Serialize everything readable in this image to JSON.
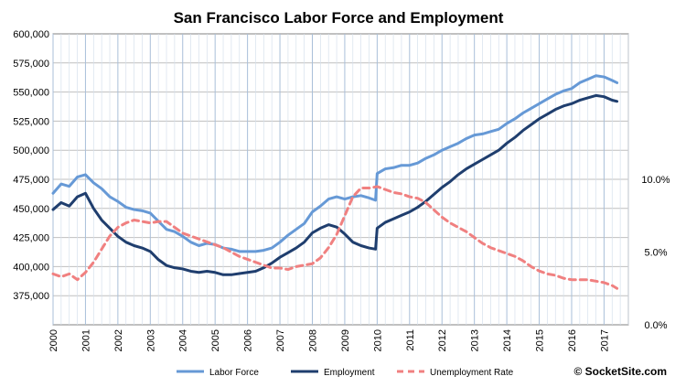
{
  "chart_data": {
    "type": "line",
    "title": "San Francisco Labor Force and Employment",
    "x_tick_labels": [
      "2000",
      "2001",
      "2002",
      "2003",
      "2004",
      "2005",
      "2006",
      "2007",
      "2008",
      "2009",
      "2010",
      "2011",
      "2012",
      "2013",
      "2014",
      "2015",
      "2016",
      "2017"
    ],
    "x_range": [
      2000,
      2017.75
    ],
    "y_left_range": [
      350000,
      600000
    ],
    "y_left_tick_labels": [
      "600,000",
      "575,000",
      "550,000",
      "525,000",
      "500,000",
      "475,000",
      "450,000",
      "425,000",
      "400,000",
      "375,000"
    ],
    "y_left_tick_values": [
      600000,
      575000,
      550000,
      525000,
      500000,
      475000,
      450000,
      425000,
      400000,
      375000
    ],
    "y_right_range": [
      0,
      0.2
    ],
    "y_right_tick_labels": [
      "10.0%",
      "5.0%",
      "0.0%"
    ],
    "y_right_tick_values": [
      0.1,
      0.05,
      0.0
    ],
    "grid": true,
    "legend_position": "bottom",
    "series": [
      {
        "name": "Labor Force",
        "axis": "left",
        "color": "#6699d6",
        "dash": "solid",
        "points": [
          [
            2000.0,
            463000
          ],
          [
            2000.25,
            471000
          ],
          [
            2000.5,
            469000
          ],
          [
            2000.75,
            477000
          ],
          [
            2001.0,
            479000
          ],
          [
            2001.25,
            472000
          ],
          [
            2001.5,
            467000
          ],
          [
            2001.75,
            460000
          ],
          [
            2002.0,
            456000
          ],
          [
            2002.25,
            451000
          ],
          [
            2002.5,
            449000
          ],
          [
            2002.75,
            448000
          ],
          [
            2003.0,
            446000
          ],
          [
            2003.25,
            439000
          ],
          [
            2003.5,
            432000
          ],
          [
            2003.75,
            430000
          ],
          [
            2004.0,
            426000
          ],
          [
            2004.25,
            421000
          ],
          [
            2004.5,
            418000
          ],
          [
            2004.75,
            420000
          ],
          [
            2005.0,
            419000
          ],
          [
            2005.25,
            416000
          ],
          [
            2005.5,
            415000
          ],
          [
            2005.75,
            413000
          ],
          [
            2006.0,
            413000
          ],
          [
            2006.25,
            413000
          ],
          [
            2006.5,
            414000
          ],
          [
            2006.75,
            416000
          ],
          [
            2007.0,
            421000
          ],
          [
            2007.25,
            427000
          ],
          [
            2007.5,
            432000
          ],
          [
            2007.75,
            437000
          ],
          [
            2008.0,
            447000
          ],
          [
            2008.25,
            452000
          ],
          [
            2008.5,
            458000
          ],
          [
            2008.75,
            460000
          ],
          [
            2009.0,
            458000
          ],
          [
            2009.25,
            460000
          ],
          [
            2009.5,
            461000
          ],
          [
            2009.75,
            459000
          ],
          [
            2009.95,
            457000
          ],
          [
            2010.0,
            480000
          ],
          [
            2010.25,
            484000
          ],
          [
            2010.5,
            485000
          ],
          [
            2010.75,
            487000
          ],
          [
            2011.0,
            487000
          ],
          [
            2011.25,
            489000
          ],
          [
            2011.5,
            493000
          ],
          [
            2011.75,
            496000
          ],
          [
            2012.0,
            500000
          ],
          [
            2012.25,
            503000
          ],
          [
            2012.5,
            506000
          ],
          [
            2012.75,
            510000
          ],
          [
            2013.0,
            513000
          ],
          [
            2013.25,
            514000
          ],
          [
            2013.5,
            516000
          ],
          [
            2013.75,
            518000
          ],
          [
            2014.0,
            523000
          ],
          [
            2014.25,
            527000
          ],
          [
            2014.5,
            532000
          ],
          [
            2014.75,
            536000
          ],
          [
            2015.0,
            540000
          ],
          [
            2015.25,
            544000
          ],
          [
            2015.5,
            548000
          ],
          [
            2015.75,
            551000
          ],
          [
            2016.0,
            553000
          ],
          [
            2016.25,
            558000
          ],
          [
            2016.5,
            561000
          ],
          [
            2016.75,
            564000
          ],
          [
            2017.0,
            563000
          ],
          [
            2017.25,
            560000
          ],
          [
            2017.4,
            558000
          ]
        ]
      },
      {
        "name": "Employment",
        "axis": "left",
        "color": "#1f3e6e",
        "dash": "solid",
        "points": [
          [
            2000.0,
            449000
          ],
          [
            2000.25,
            455000
          ],
          [
            2000.5,
            452000
          ],
          [
            2000.75,
            460000
          ],
          [
            2001.0,
            463000
          ],
          [
            2001.25,
            450000
          ],
          [
            2001.5,
            440000
          ],
          [
            2001.75,
            433000
          ],
          [
            2002.0,
            426000
          ],
          [
            2002.25,
            421000
          ],
          [
            2002.5,
            418000
          ],
          [
            2002.75,
            416000
          ],
          [
            2003.0,
            413000
          ],
          [
            2003.25,
            406000
          ],
          [
            2003.5,
            401000
          ],
          [
            2003.75,
            399000
          ],
          [
            2004.0,
            398000
          ],
          [
            2004.25,
            396000
          ],
          [
            2004.5,
            395000
          ],
          [
            2004.75,
            396000
          ],
          [
            2005.0,
            395000
          ],
          [
            2005.25,
            393000
          ],
          [
            2005.5,
            393000
          ],
          [
            2005.75,
            394000
          ],
          [
            2006.0,
            395000
          ],
          [
            2006.25,
            396000
          ],
          [
            2006.5,
            399000
          ],
          [
            2006.75,
            403000
          ],
          [
            2007.0,
            408000
          ],
          [
            2007.25,
            412000
          ],
          [
            2007.5,
            416000
          ],
          [
            2007.75,
            421000
          ],
          [
            2008.0,
            429000
          ],
          [
            2008.25,
            433000
          ],
          [
            2008.5,
            436000
          ],
          [
            2008.75,
            434000
          ],
          [
            2009.0,
            428000
          ],
          [
            2009.25,
            421000
          ],
          [
            2009.5,
            418000
          ],
          [
            2009.75,
            416000
          ],
          [
            2009.95,
            415000
          ],
          [
            2010.0,
            433000
          ],
          [
            2010.25,
            438000
          ],
          [
            2010.5,
            441000
          ],
          [
            2010.75,
            444000
          ],
          [
            2011.0,
            447000
          ],
          [
            2011.25,
            451000
          ],
          [
            2011.5,
            456000
          ],
          [
            2011.75,
            462000
          ],
          [
            2012.0,
            468000
          ],
          [
            2012.25,
            473000
          ],
          [
            2012.5,
            479000
          ],
          [
            2012.75,
            484000
          ],
          [
            2013.0,
            488000
          ],
          [
            2013.25,
            492000
          ],
          [
            2013.5,
            496000
          ],
          [
            2013.75,
            500000
          ],
          [
            2014.0,
            506000
          ],
          [
            2014.25,
            511000
          ],
          [
            2014.5,
            517000
          ],
          [
            2014.75,
            522000
          ],
          [
            2015.0,
            527000
          ],
          [
            2015.25,
            531000
          ],
          [
            2015.5,
            535000
          ],
          [
            2015.75,
            538000
          ],
          [
            2016.0,
            540000
          ],
          [
            2016.25,
            543000
          ],
          [
            2016.5,
            545000
          ],
          [
            2016.75,
            547000
          ],
          [
            2017.0,
            546000
          ],
          [
            2017.25,
            543000
          ],
          [
            2017.4,
            542000
          ]
        ]
      },
      {
        "name": "Unemployment Rate",
        "axis": "right",
        "color": "#f08080",
        "dash": "dashed",
        "points": [
          [
            2000.0,
            0.035
          ],
          [
            2000.25,
            0.033
          ],
          [
            2000.5,
            0.035
          ],
          [
            2000.75,
            0.031
          ],
          [
            2001.0,
            0.036
          ],
          [
            2001.25,
            0.043
          ],
          [
            2001.5,
            0.052
          ],
          [
            2001.75,
            0.061
          ],
          [
            2002.0,
            0.067
          ],
          [
            2002.25,
            0.07
          ],
          [
            2002.5,
            0.072
          ],
          [
            2002.75,
            0.071
          ],
          [
            2003.0,
            0.07
          ],
          [
            2003.25,
            0.071
          ],
          [
            2003.5,
            0.071
          ],
          [
            2003.75,
            0.067
          ],
          [
            2004.0,
            0.063
          ],
          [
            2004.25,
            0.061
          ],
          [
            2004.5,
            0.059
          ],
          [
            2004.75,
            0.057
          ],
          [
            2005.0,
            0.055
          ],
          [
            2005.25,
            0.053
          ],
          [
            2005.5,
            0.05
          ],
          [
            2005.75,
            0.047
          ],
          [
            2006.0,
            0.045
          ],
          [
            2006.25,
            0.043
          ],
          [
            2006.5,
            0.041
          ],
          [
            2006.75,
            0.039
          ],
          [
            2007.0,
            0.039
          ],
          [
            2007.25,
            0.038
          ],
          [
            2007.5,
            0.04
          ],
          [
            2007.75,
            0.041
          ],
          [
            2008.0,
            0.042
          ],
          [
            2008.25,
            0.046
          ],
          [
            2008.5,
            0.053
          ],
          [
            2008.75,
            0.062
          ],
          [
            2009.0,
            0.075
          ],
          [
            2009.25,
            0.088
          ],
          [
            2009.5,
            0.094
          ],
          [
            2009.75,
            0.094
          ],
          [
            2010.0,
            0.095
          ],
          [
            2010.25,
            0.093
          ],
          [
            2010.5,
            0.091
          ],
          [
            2010.75,
            0.09
          ],
          [
            2011.0,
            0.088
          ],
          [
            2011.25,
            0.087
          ],
          [
            2011.5,
            0.084
          ],
          [
            2011.75,
            0.079
          ],
          [
            2012.0,
            0.074
          ],
          [
            2012.25,
            0.07
          ],
          [
            2012.5,
            0.067
          ],
          [
            2012.75,
            0.064
          ],
          [
            2013.0,
            0.06
          ],
          [
            2013.25,
            0.056
          ],
          [
            2013.5,
            0.053
          ],
          [
            2013.75,
            0.051
          ],
          [
            2014.0,
            0.049
          ],
          [
            2014.25,
            0.047
          ],
          [
            2014.5,
            0.044
          ],
          [
            2014.75,
            0.04
          ],
          [
            2015.0,
            0.037
          ],
          [
            2015.25,
            0.035
          ],
          [
            2015.5,
            0.034
          ],
          [
            2015.75,
            0.032
          ],
          [
            2016.0,
            0.031
          ],
          [
            2016.25,
            0.031
          ],
          [
            2016.5,
            0.031
          ],
          [
            2016.75,
            0.03
          ],
          [
            2017.0,
            0.029
          ],
          [
            2017.25,
            0.027
          ],
          [
            2017.4,
            0.025
          ]
        ]
      }
    ]
  },
  "credit": "© SocketSite.com"
}
